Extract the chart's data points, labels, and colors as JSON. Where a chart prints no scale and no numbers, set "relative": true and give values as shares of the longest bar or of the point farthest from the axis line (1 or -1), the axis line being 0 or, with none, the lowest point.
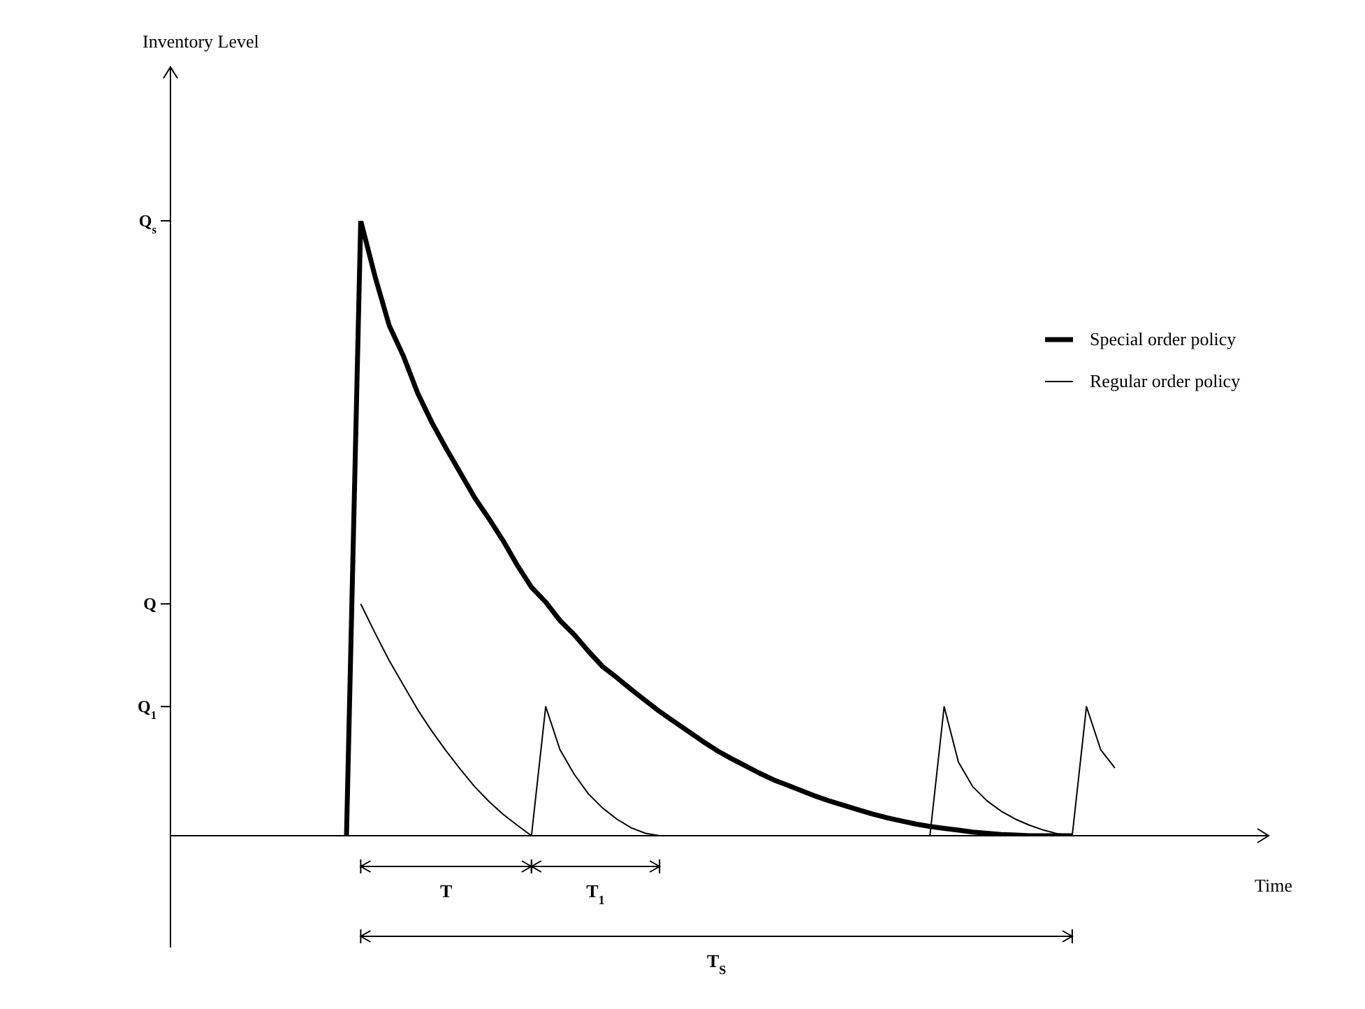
{
  "chart_data": {
    "type": "line",
    "relative": true,
    "categories": [
      null,
      null,
      null,
      null,
      null,
      null,
      null,
      null,
      null,
      null,
      null,
      null,
      null,
      null,
      null,
      null,
      null,
      null,
      null,
      null,
      null,
      null,
      null,
      null,
      null,
      null,
      null,
      null,
      null,
      null,
      null,
      null,
      null,
      null,
      null,
      null,
      null,
      null,
      null,
      null,
      null,
      null,
      null,
      null,
      null,
      null,
      null,
      null,
      null,
      null,
      null,
      null,
      null,
      null,
      null
    ],
    "legend": "right",
    "marker": "none",
    "line_style": "solid",
    "series": [
      {
        "name": "Special order policy",
        "color": "#000000",
        "values": [
          0,
          1,
          0.91,
          0.83,
          0.78,
          0.72,
          0.672,
          0.63,
          0.59,
          0.55,
          0.516,
          0.48,
          0.44,
          0.404,
          0.38,
          0.35,
          0.327,
          0.3,
          0.275,
          0.257,
          0.238,
          0.22,
          0.202,
          0.186,
          0.17,
          0.154,
          0.139,
          0.126,
          0.114,
          0.102,
          0.091,
          0.082,
          0.073,
          0.064,
          0.056,
          0.049,
          0.042,
          0.035,
          0.029,
          0.024,
          0.019,
          0.015,
          0.012,
          0.009,
          0.006,
          0.004,
          0.002,
          0.001,
          0,
          0,
          0,
          0,
          null,
          null,
          null
        ]
      },
      {
        "name": "Regular order policy",
        "color": "#000000",
        "values": [
          null,
          0.377,
          0.33,
          0.285,
          0.245,
          0.205,
          0.17,
          0.138,
          0.108,
          0.08,
          0.056,
          0.035,
          0.017,
          0,
          0.21,
          0.14,
          0.1,
          0.068,
          0.045,
          0.027,
          0.013,
          0.004,
          0,
          null,
          null,
          null,
          null,
          null,
          null,
          null,
          null,
          null,
          null,
          null,
          null,
          null,
          null,
          null,
          null,
          null,
          null,
          0,
          0.21,
          0.12,
          0.08,
          0.057,
          0.04,
          0.027,
          0.017,
          0.009,
          0.003,
          0,
          0.21,
          0.14,
          0.11
        ]
      }
    ],
    "annotations": [
      "Inventory Level",
      "Time",
      "Q$_{s}$",
      "Q",
      "Q$_{1}$",
      "T",
      "T$_{1}$",
      "T$_{S}$"
    ]
  }
}
